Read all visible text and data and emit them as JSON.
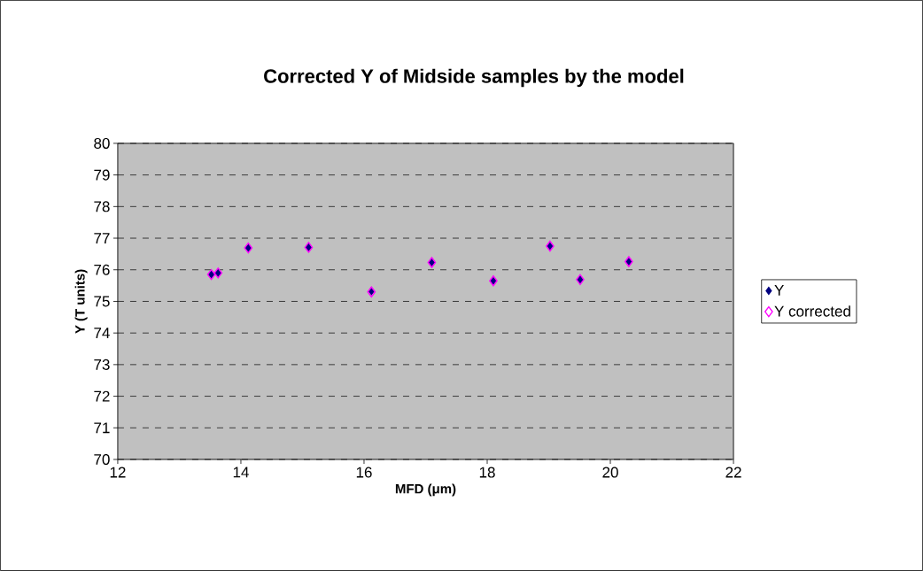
{
  "chart_data": {
    "type": "scatter",
    "title": "Corrected Y of Midside samples by the model",
    "xlabel": "MFD (μm)",
    "ylabel": "Y (T units)",
    "x": [
      13.52,
      13.63,
      14.12,
      15.1,
      16.12,
      17.1,
      18.1,
      19.02,
      19.51,
      20.3
    ],
    "series": [
      {
        "name": "Y",
        "color": "#000080",
        "values": [
          75.85,
          75.9,
          76.69,
          76.71,
          75.33,
          76.23,
          75.65,
          76.75,
          75.69,
          76.26
        ]
      },
      {
        "name": "Y corrected",
        "color": "#ff00ff",
        "values": [
          75.85,
          75.9,
          76.69,
          76.71,
          75.3,
          76.23,
          75.65,
          76.75,
          75.69,
          76.26
        ]
      }
    ],
    "xlim": [
      12,
      22
    ],
    "ylim": [
      70,
      80
    ],
    "xticks": [
      12,
      14,
      16,
      18,
      20,
      22
    ],
    "yticks": [
      70,
      71,
      72,
      73,
      74,
      75,
      76,
      77,
      78,
      79,
      80
    ],
    "grid": "y",
    "legend": "right",
    "marker": "diamond"
  }
}
